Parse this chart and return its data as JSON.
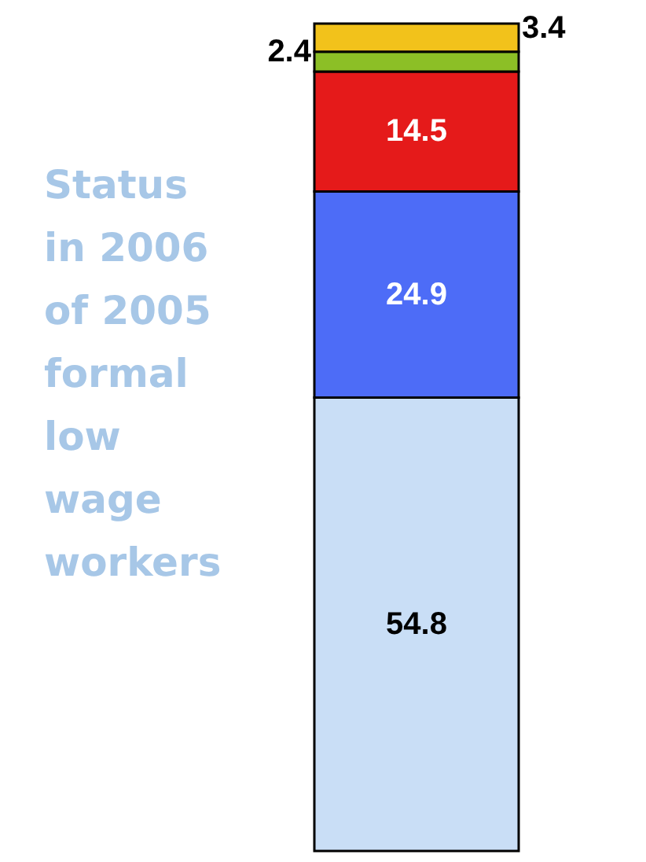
{
  "chart_data": {
    "type": "bar",
    "stacked": true,
    "title": "Status in 2006 of 2005 formal low wage workers",
    "categories": [
      null
    ],
    "data_labels": true,
    "tick_labels": false,
    "series": [
      {
        "color": "#c9def6",
        "values": [
          54.8
        ]
      },
      {
        "color": "#4d6cf7",
        "values": [
          24.9
        ]
      },
      {
        "color": "#e51a1a",
        "values": [
          14.5
        ]
      },
      {
        "color": "#8cbf26",
        "values": [
          2.4
        ]
      },
      {
        "color": "#f2c21b",
        "values": [
          3.4
        ]
      }
    ]
  }
}
